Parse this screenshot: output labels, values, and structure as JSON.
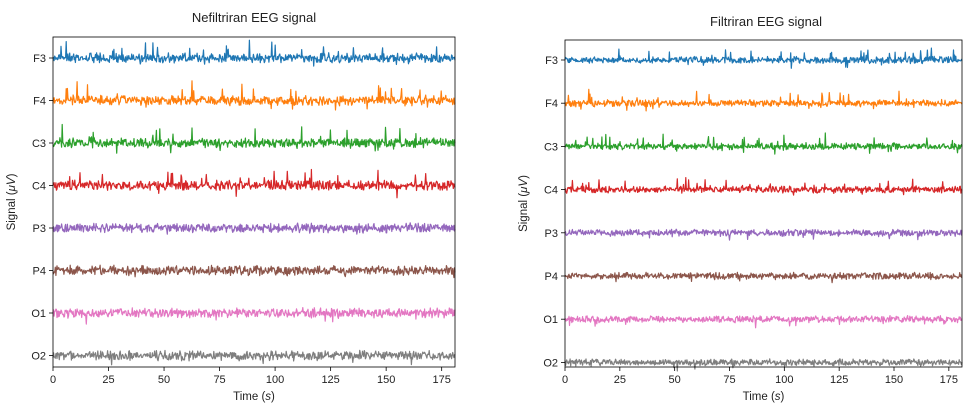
{
  "chart_data": [
    {
      "type": "line",
      "title": "Nefiltriran EEG signal",
      "xlabel": "Time",
      "xunit": "s",
      "ylabel": "Signal",
      "yunit": "μV",
      "xlim": [
        0,
        181
      ],
      "xticks": [
        0,
        25,
        50,
        75,
        100,
        125,
        150,
        175
      ],
      "channels": [
        "F3",
        "F4",
        "C3",
        "C4",
        "P3",
        "P4",
        "O1",
        "O2"
      ],
      "colors": [
        "#1f77b4",
        "#ff7f0e",
        "#2ca02c",
        "#d62728",
        "#9467bd",
        "#8c564b",
        "#e377c2",
        "#7f7f7f"
      ],
      "grid": false,
      "legend": "none"
    },
    {
      "type": "line",
      "title": "Filtriran EEG signal",
      "xlabel": "Time",
      "xunit": "s",
      "ylabel": "Signal",
      "yunit": "μV",
      "xlim": [
        0,
        181
      ],
      "xticks": [
        0,
        25,
        50,
        75,
        100,
        125,
        150,
        175
      ],
      "channels": [
        "F3",
        "F4",
        "C3",
        "C4",
        "P3",
        "P4",
        "O1",
        "O2"
      ],
      "colors": [
        "#1f77b4",
        "#ff7f0e",
        "#2ca02c",
        "#d62728",
        "#9467bd",
        "#8c564b",
        "#e377c2",
        "#7f7f7f"
      ],
      "grid": false,
      "legend": "none"
    }
  ]
}
